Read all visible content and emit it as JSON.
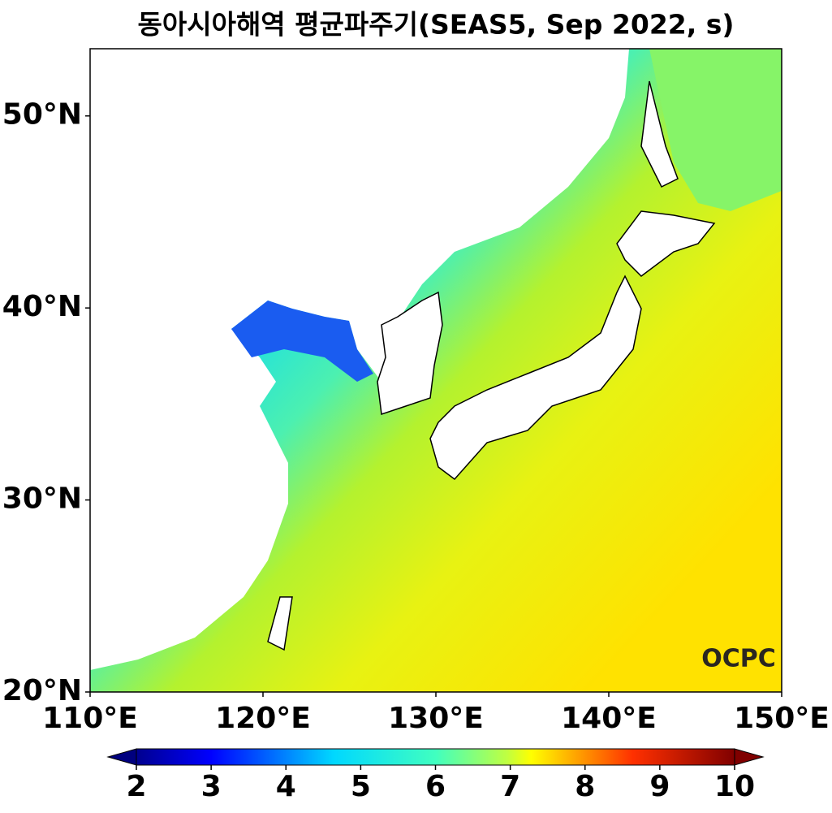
{
  "chart_data": {
    "type": "map",
    "title": "동아시아해역 평균파주기(SEAS5, Sep 2022, s)",
    "xlim": [
      110,
      150
    ],
    "ylim": [
      20,
      53.5
    ],
    "xticks": [
      {
        "value": 110,
        "label": "110°E"
      },
      {
        "value": 120,
        "label": "120°E"
      },
      {
        "value": 130,
        "label": "130°E"
      },
      {
        "value": 140,
        "label": "140°E"
      },
      {
        "value": 150,
        "label": "150°E"
      }
    ],
    "yticks": [
      {
        "value": 20,
        "label": "20°N"
      },
      {
        "value": 30,
        "label": "30°N"
      },
      {
        "value": 40,
        "label": "40°N"
      },
      {
        "value": 50,
        "label": "50°N"
      }
    ],
    "colorbar": {
      "lim": [
        2,
        10
      ],
      "ticks": [
        2,
        3,
        4,
        5,
        6,
        7,
        8,
        9,
        10
      ],
      "extend": "both"
    },
    "logo": "OCPC"
  }
}
